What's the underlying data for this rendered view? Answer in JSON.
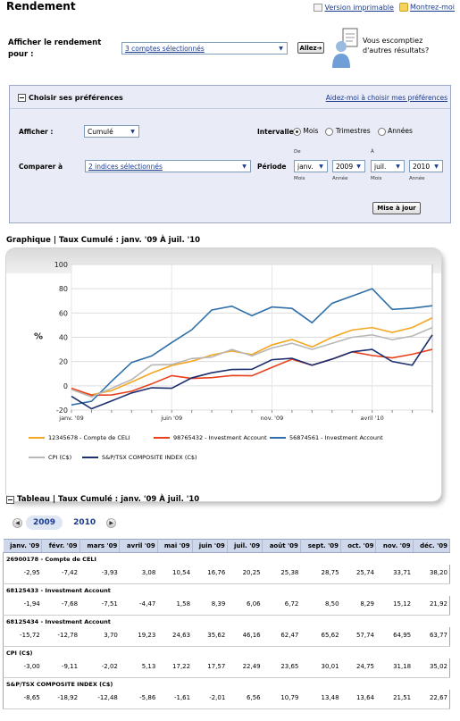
{
  "page": {
    "title": "Rendement",
    "print_link": "Version imprimable",
    "help_link": "Montrez-moi"
  },
  "accounts_selector": {
    "label": "Afficher le rendement pour :",
    "value": "3 comptes sélectionnés",
    "go_button": "Allez",
    "promo_text": "Vous escomptiez d'autres résultats?"
  },
  "preferences": {
    "header": "Choisir ses préférences",
    "help_link": "Aidez-moi à choisir mes préférences",
    "afficher_label": "Afficher :",
    "afficher_value": "Cumulé",
    "intervalle_label": "Intervalle",
    "intervalle_options": [
      "Mois",
      "Trimestres",
      "Années"
    ],
    "intervalle_selected": "Mois",
    "comparer_label": "Comparer à",
    "comparer_value": "2 indices sélectionnés",
    "periode_label": "Période",
    "de_label": "De",
    "a_label": "À",
    "from_month": "janv.",
    "from_year": "2009",
    "to_month": "juil.",
    "to_year": "2010",
    "mois_label": "Mois",
    "annee_label": "Année",
    "update_button": "Mise à jour"
  },
  "chart_section": {
    "title": "Graphique | Taux Cumulé : janv. '09 À juil. '10"
  },
  "chart_data": {
    "type": "line",
    "ylabel": "%",
    "ylim": [
      -20,
      100
    ],
    "yticks": [
      -20,
      0,
      20,
      40,
      60,
      80,
      100
    ],
    "xticks": [
      "janv. '09",
      "juin '09",
      "nov. '09",
      "avril '10"
    ],
    "x": [
      "janv. '09",
      "févr. '09",
      "mars '09",
      "avril '09",
      "mai '09",
      "juin '09",
      "juil. '09",
      "août '09",
      "sept. '09",
      "oct. '09",
      "nov. '09",
      "déc. '09",
      "janv. '10",
      "févr. '10",
      "mars '10",
      "avril '10",
      "mai '10",
      "juin '10",
      "juil. '10"
    ],
    "series": [
      {
        "name": "12345678 - Compte de CELI",
        "color": "#f5a623",
        "values": [
          -2.95,
          -7.42,
          -3.93,
          3.08,
          10.54,
          16.76,
          20.25,
          25.38,
          28.75,
          25.74,
          33.71,
          38.2,
          32,
          40,
          46,
          48,
          44,
          48,
          56
        ]
      },
      {
        "name": "98765432 - Investment Account",
        "color": "#e8401c",
        "values": [
          -1.94,
          -7.68,
          -7.51,
          -4.47,
          1.58,
          8.39,
          6.06,
          6.72,
          8.5,
          8.29,
          15.12,
          21.92,
          17,
          22,
          28,
          25,
          23,
          26,
          30
        ]
      },
      {
        "name": "56874561 - Investment Account",
        "color": "#2f6fa8",
        "values": [
          -15.72,
          -12.78,
          3.7,
          19.23,
          24.63,
          35.62,
          46.16,
          62.47,
          65.62,
          57.74,
          64.95,
          63.77,
          52,
          68,
          74,
          80,
          63,
          64,
          66
        ]
      },
      {
        "name": "CPI (C$)",
        "color": "#b8b8b8",
        "values": [
          -3.0,
          -9.11,
          -2.02,
          5.13,
          17.22,
          17.57,
          22.49,
          23.65,
          30.01,
          24.75,
          31.18,
          35.02,
          30,
          35,
          40,
          42,
          38,
          41,
          48
        ]
      },
      {
        "name": "S&P/TSX COMPOSITE INDEX (C$)",
        "color": "#1d2f6e",
        "values": [
          -8.65,
          -18.92,
          -12.48,
          -5.86,
          -1.61,
          -2.01,
          6.56,
          10.79,
          13.48,
          13.64,
          21.51,
          22.67,
          17,
          22,
          28,
          30,
          20,
          17,
          42
        ]
      }
    ]
  },
  "table_section": {
    "title": "Tableau | Taux Cumulé : janv. '09 À juil. '10",
    "years": [
      "2009",
      "2010"
    ],
    "active_year": "2009",
    "columns": [
      "janv. '09",
      "févr. '09",
      "mars '09",
      "avril '09",
      "mai '09",
      "juin '09",
      "juil. '09",
      "août '09",
      "sept. '09",
      "oct. '09",
      "nov. '09",
      "déc. '09"
    ],
    "rows": [
      {
        "account": "26900178 - Compte de CELI",
        "values": [
          "-2,95",
          "-7,42",
          "-3,93",
          "3,08",
          "10,54",
          "16,76",
          "20,25",
          "25,38",
          "28,75",
          "25,74",
          "33,71",
          "38,20"
        ]
      },
      {
        "account": "68125433 - Investment Account",
        "values": [
          "-1,94",
          "-7,68",
          "-7,51",
          "-4,47",
          "1,58",
          "8,39",
          "6,06",
          "6,72",
          "8,50",
          "8,29",
          "15,12",
          "21,92"
        ]
      },
      {
        "account": "68125434 - Investment Account",
        "values": [
          "-15,72",
          "-12,78",
          "3,70",
          "19,23",
          "24,63",
          "35,62",
          "46,16",
          "62,47",
          "65,62",
          "57,74",
          "64,95",
          "63,77"
        ]
      },
      {
        "account": "CPI (C$)",
        "values": [
          "-3,00",
          "-9,11",
          "-2,02",
          "5,13",
          "17,22",
          "17,57",
          "22,49",
          "23,65",
          "30,01",
          "24,75",
          "31,18",
          "35,02"
        ]
      },
      {
        "account": "S&P/TSX COMPOSITE INDEX (C$)",
        "values": [
          "-8,65",
          "-18,92",
          "-12,48",
          "-5,86",
          "-1,61",
          "-2,01",
          "6,56",
          "10,79",
          "13,48",
          "13,64",
          "21,51",
          "22,67"
        ]
      }
    ]
  }
}
